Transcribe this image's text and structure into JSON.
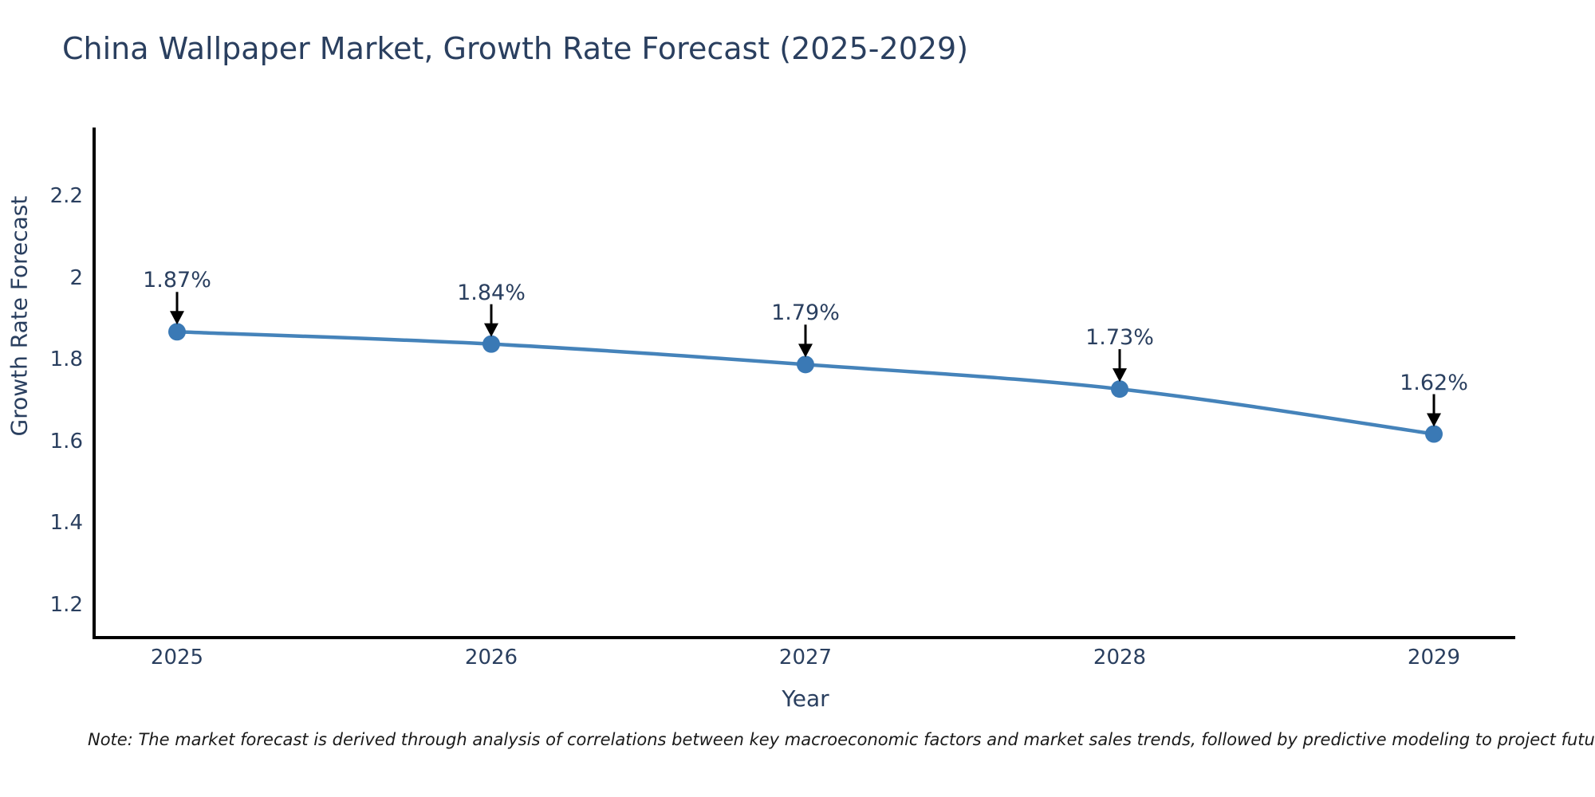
{
  "title": "China Wallpaper Market, Growth Rate Forecast (2025-2029)",
  "note": "Note: The market forecast is derived through analysis of correlations between key macroeconomic factors and market sales trends, followed by predictive modeling to project future sales",
  "chart_data": {
    "type": "line",
    "title": "China Wallpaper Market, Growth Rate Forecast (2025-2029)",
    "xlabel": "Year",
    "ylabel": "Growth Rate Forecast",
    "x": [
      2025,
      2026,
      2027,
      2028,
      2029
    ],
    "y": [
      1.87,
      1.84,
      1.79,
      1.73,
      1.62
    ],
    "point_labels": [
      "1.87%",
      "1.84%",
      "1.79%",
      "1.73%",
      "1.62%"
    ],
    "x_tick_labels": [
      "2025",
      "2026",
      "2027",
      "2028",
      "2029"
    ],
    "y_tick_values": [
      2.2,
      2.0,
      1.8,
      1.6,
      1.4,
      1.2
    ],
    "y_tick_labels": [
      "2.2",
      "2",
      "1.8",
      "1.6",
      "1.4",
      "1.2"
    ],
    "ylim": [
      1.12,
      2.37
    ],
    "grid": false,
    "legend": "none",
    "line_color": "#4583ba",
    "marker_color": "#3a79b5",
    "axis_color": "#000000",
    "annotation_arrow_color": "#000000",
    "text_color": "#2a3f5f"
  }
}
